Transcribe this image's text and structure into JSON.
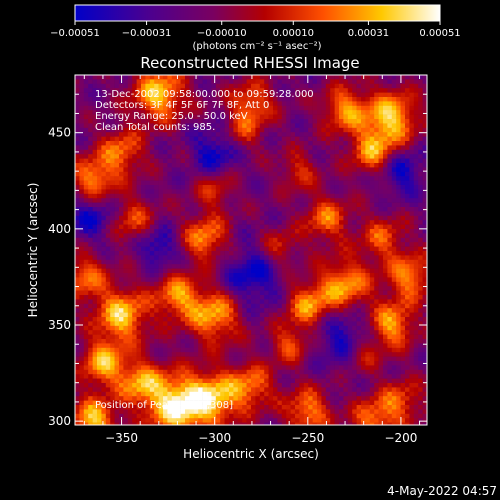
{
  "chart_data": {
    "type": "heatmap",
    "title": "Reconstructed RHESSI Image",
    "xlabel": "Heliocentric X (arcsec)",
    "ylabel": "Heliocentric Y (arcsec)",
    "xlim": [
      -375,
      -186
    ],
    "ylim": [
      298,
      480
    ],
    "x_ticks": [
      -350,
      -300,
      -250,
      -200
    ],
    "x_tick_labels": [
      "−350",
      "−300",
      "−250",
      "−200"
    ],
    "y_ticks": [
      300,
      350,
      400,
      450
    ],
    "y_tick_labels": [
      "300",
      "350",
      "400",
      "450"
    ],
    "colorbar": {
      "min": -0.00051,
      "max": 0.00051,
      "ticks": [
        -0.00051,
        -0.00031,
        -0.0001,
        0.0001,
        0.00031,
        0.00051
      ],
      "tick_labels": [
        "−0.00051",
        "−0.00031",
        "−0.00010",
        "0.00010",
        "0.00031",
        "0.00051"
      ],
      "unit": "(photons cm⁻² s⁻¹ asec⁻²)",
      "colormap": [
        "#0000c8",
        "#4b0090",
        "#7a0060",
        "#b40000",
        "#ff5000",
        "#ffc800",
        "#ffffff"
      ]
    },
    "annotations": [
      "13-Dec-2002 09:58:00.000 to 09:59:28.000",
      "Detectors: 3F 4F 5F 6F 7F 8F, Att 0",
      "Energy Range: 25.0 - 50.0 keV",
      "Clean    Total counts: 985."
    ],
    "position_label": "Position of Peak: [-320,308]",
    "peak": [
      -320,
      308
    ],
    "grid": false
  },
  "footer": {
    "date": "4-May-2022 04:57"
  }
}
